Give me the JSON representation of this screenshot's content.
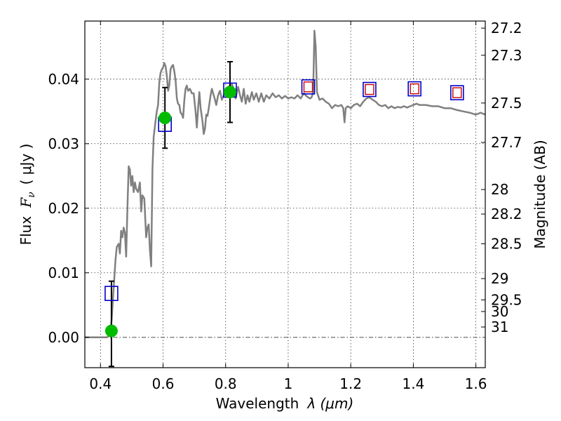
{
  "chart_data": {
    "type": "scatter",
    "title": "",
    "xlabel": "Wavelength",
    "xlabel_symbol": "λ (μm)",
    "ylabel": "Flux",
    "ylabel_symbol": "F",
    "ylabel_sub": "ν",
    "ylabel_unit": "( μJy )",
    "y2label": "Magnitude (AB)",
    "xlim": [
      0.35,
      1.63
    ],
    "ylim": [
      -0.0047,
      0.049
    ],
    "grid": true,
    "x_ticks": [
      0.4,
      0.6,
      0.8,
      1.0,
      1.2,
      1.4,
      1.6
    ],
    "x_tick_labels": [
      "0.4",
      "0.6",
      "0.8",
      "1",
      "1.2",
      "1.4",
      "1.6"
    ],
    "y_ticks": [
      0.0,
      0.01,
      0.02,
      0.03,
      0.04
    ],
    "y_tick_labels": [
      "0.00",
      "0.01",
      "0.02",
      "0.03",
      "0.04"
    ],
    "mag_ticks": [
      {
        "label": "27.2",
        "flux": 0.0479
      },
      {
        "label": "27.3",
        "flux": 0.0437
      },
      {
        "label": "27.5",
        "flux": 0.0363
      },
      {
        "label": "27.7",
        "flux": 0.0302
      },
      {
        "label": "28",
        "flux": 0.0229
      },
      {
        "label": "28.2",
        "flux": 0.0191
      },
      {
        "label": "28.5",
        "flux": 0.0145
      },
      {
        "label": "29",
        "flux": 0.0091
      },
      {
        "label": "29.5",
        "flux": 0.0058
      },
      {
        "label": "30",
        "flux": 0.004
      },
      {
        "label": "31",
        "flux": 0.0016
      }
    ],
    "model_spectrum": {
      "name": "model SED",
      "color": "#808080",
      "points": [
        [
          0.35,
          0.0
        ],
        [
          0.42,
          0.0
        ],
        [
          0.428,
          0.0002
        ],
        [
          0.432,
          0.0008
        ],
        [
          0.436,
          0.003
        ],
        [
          0.44,
          0.006
        ],
        [
          0.444,
          0.009
        ],
        [
          0.448,
          0.012
        ],
        [
          0.452,
          0.014
        ],
        [
          0.458,
          0.0145
        ],
        [
          0.462,
          0.013
        ],
        [
          0.466,
          0.0165
        ],
        [
          0.47,
          0.0155
        ],
        [
          0.474,
          0.017
        ],
        [
          0.478,
          0.0162
        ],
        [
          0.482,
          0.0125
        ],
        [
          0.486,
          0.02
        ],
        [
          0.49,
          0.0265
        ],
        [
          0.494,
          0.026
        ],
        [
          0.498,
          0.0235
        ],
        [
          0.502,
          0.025
        ],
        [
          0.506,
          0.0225
        ],
        [
          0.51,
          0.024
        ],
        [
          0.514,
          0.023
        ],
        [
          0.52,
          0.0225
        ],
        [
          0.526,
          0.024
        ],
        [
          0.53,
          0.0195
        ],
        [
          0.534,
          0.022
        ],
        [
          0.54,
          0.0215
        ],
        [
          0.546,
          0.0155
        ],
        [
          0.55,
          0.017
        ],
        [
          0.554,
          0.0175
        ],
        [
          0.558,
          0.0135
        ],
        [
          0.562,
          0.011
        ],
        [
          0.566,
          0.026
        ],
        [
          0.57,
          0.031
        ],
        [
          0.576,
          0.0335
        ],
        [
          0.58,
          0.035
        ],
        [
          0.584,
          0.036
        ],
        [
          0.588,
          0.0395
        ],
        [
          0.592,
          0.041
        ],
        [
          0.596,
          0.0415
        ],
        [
          0.6,
          0.0418
        ],
        [
          0.604,
          0.0425
        ],
        [
          0.608,
          0.042
        ],
        [
          0.612,
          0.0405
        ],
        [
          0.616,
          0.0382
        ],
        [
          0.62,
          0.039
        ],
        [
          0.624,
          0.0415
        ],
        [
          0.628,
          0.042
        ],
        [
          0.632,
          0.0422
        ],
        [
          0.636,
          0.0412
        ],
        [
          0.64,
          0.0398
        ],
        [
          0.644,
          0.037
        ],
        [
          0.648,
          0.0362
        ],
        [
          0.652,
          0.036
        ],
        [
          0.656,
          0.0348
        ],
        [
          0.66,
          0.0346
        ],
        [
          0.664,
          0.034
        ],
        [
          0.668,
          0.0368
        ],
        [
          0.672,
          0.0385
        ],
        [
          0.676,
          0.039
        ],
        [
          0.68,
          0.0382
        ],
        [
          0.686,
          0.0385
        ],
        [
          0.692,
          0.0378
        ],
        [
          0.698,
          0.0378
        ],
        [
          0.704,
          0.035
        ],
        [
          0.708,
          0.0325
        ],
        [
          0.712,
          0.0355
        ],
        [
          0.716,
          0.038
        ],
        [
          0.72,
          0.0355
        ],
        [
          0.726,
          0.0335
        ],
        [
          0.73,
          0.0315
        ],
        [
          0.734,
          0.0323
        ],
        [
          0.738,
          0.0345
        ],
        [
          0.742,
          0.0343
        ],
        [
          0.746,
          0.0355
        ],
        [
          0.752,
          0.0375
        ],
        [
          0.756,
          0.0385
        ],
        [
          0.76,
          0.0378
        ],
        [
          0.766,
          0.0368
        ],
        [
          0.77,
          0.036
        ],
        [
          0.776,
          0.0375
        ],
        [
          0.782,
          0.0382
        ],
        [
          0.788,
          0.0368
        ],
        [
          0.794,
          0.0375
        ],
        [
          0.8,
          0.0382
        ],
        [
          0.806,
          0.0372
        ],
        [
          0.812,
          0.039
        ],
        [
          0.82,
          0.0392
        ],
        [
          0.826,
          0.0385
        ],
        [
          0.832,
          0.037
        ],
        [
          0.84,
          0.0388
        ],
        [
          0.846,
          0.0375
        ],
        [
          0.852,
          0.0365
        ],
        [
          0.858,
          0.0385
        ],
        [
          0.864,
          0.0362
        ],
        [
          0.87,
          0.0375
        ],
        [
          0.876,
          0.0365
        ],
        [
          0.884,
          0.038
        ],
        [
          0.89,
          0.0368
        ],
        [
          0.898,
          0.0378
        ],
        [
          0.906,
          0.0365
        ],
        [
          0.914,
          0.0378
        ],
        [
          0.922,
          0.0365
        ],
        [
          0.93,
          0.0375
        ],
        [
          0.94,
          0.037
        ],
        [
          0.95,
          0.0378
        ],
        [
          0.96,
          0.0372
        ],
        [
          0.97,
          0.0375
        ],
        [
          0.98,
          0.037
        ],
        [
          0.99,
          0.0374
        ],
        [
          1.0,
          0.037
        ],
        [
          1.01,
          0.0372
        ],
        [
          1.02,
          0.037
        ],
        [
          1.03,
          0.0375
        ],
        [
          1.04,
          0.037
        ],
        [
          1.05,
          0.0378
        ],
        [
          1.06,
          0.0373
        ],
        [
          1.07,
          0.037
        ],
        [
          1.075,
          0.0372
        ],
        [
          1.08,
          0.038
        ],
        [
          1.084,
          0.0475
        ],
        [
          1.088,
          0.045
        ],
        [
          1.092,
          0.038
        ],
        [
          1.1,
          0.0368
        ],
        [
          1.11,
          0.037
        ],
        [
          1.12,
          0.0365
        ],
        [
          1.13,
          0.0362
        ],
        [
          1.14,
          0.0355
        ],
        [
          1.15,
          0.036
        ],
        [
          1.16,
          0.0358
        ],
        [
          1.17,
          0.036
        ],
        [
          1.176,
          0.0355
        ],
        [
          1.18,
          0.0333
        ],
        [
          1.184,
          0.0355
        ],
        [
          1.19,
          0.0358
        ],
        [
          1.2,
          0.0355
        ],
        [
          1.21,
          0.036
        ],
        [
          1.22,
          0.0362
        ],
        [
          1.23,
          0.0358
        ],
        [
          1.24,
          0.0365
        ],
        [
          1.25,
          0.037
        ],
        [
          1.26,
          0.0372
        ],
        [
          1.27,
          0.0368
        ],
        [
          1.28,
          0.0365
        ],
        [
          1.29,
          0.036
        ],
        [
          1.3,
          0.0358
        ],
        [
          1.31,
          0.036
        ],
        [
          1.32,
          0.0355
        ],
        [
          1.33,
          0.0358
        ],
        [
          1.34,
          0.0355
        ],
        [
          1.35,
          0.0357
        ],
        [
          1.36,
          0.0356
        ],
        [
          1.37,
          0.0358
        ],
        [
          1.38,
          0.0356
        ],
        [
          1.39,
          0.0358
        ],
        [
          1.4,
          0.036
        ],
        [
          1.41,
          0.0362
        ],
        [
          1.42,
          0.036
        ],
        [
          1.44,
          0.036
        ],
        [
          1.46,
          0.0358
        ],
        [
          1.48,
          0.0358
        ],
        [
          1.5,
          0.0355
        ],
        [
          1.52,
          0.0355
        ],
        [
          1.54,
          0.0352
        ],
        [
          1.56,
          0.035
        ],
        [
          1.58,
          0.0348
        ],
        [
          1.6,
          0.0345
        ],
        [
          1.615,
          0.0348
        ],
        [
          1.63,
          0.0345
        ]
      ]
    },
    "model_photometry": {
      "name": "model photometry",
      "color": "#0000cc",
      "points": [
        {
          "x": 0.435,
          "y": 0.0068
        },
        {
          "x": 0.606,
          "y": 0.033
        },
        {
          "x": 0.814,
          "y": 0.0383
        },
        {
          "x": 1.064,
          "y": 0.0388
        },
        {
          "x": 1.26,
          "y": 0.0384
        },
        {
          "x": 1.404,
          "y": 0.0385
        },
        {
          "x": 1.54,
          "y": 0.0379
        }
      ]
    },
    "observed_upper_limits": {
      "name": "observed (open)",
      "color": "#cc0000",
      "points": [
        {
          "x": 1.064,
          "y": 0.0388
        },
        {
          "x": 1.26,
          "y": 0.0384
        },
        {
          "x": 1.404,
          "y": 0.0385
        },
        {
          "x": 1.54,
          "y": 0.0379
        }
      ]
    },
    "observed_detections": {
      "name": "observed",
      "color": "#00bb00",
      "points": [
        {
          "x": 0.435,
          "y": 0.001,
          "err_low": 0.0055,
          "err_high": 0.0077
        },
        {
          "x": 0.606,
          "y": 0.034,
          "err_low": 0.0047,
          "err_high": 0.0047
        },
        {
          "x": 0.814,
          "y": 0.038,
          "err_low": 0.0047,
          "err_high": 0.0047
        }
      ]
    }
  }
}
